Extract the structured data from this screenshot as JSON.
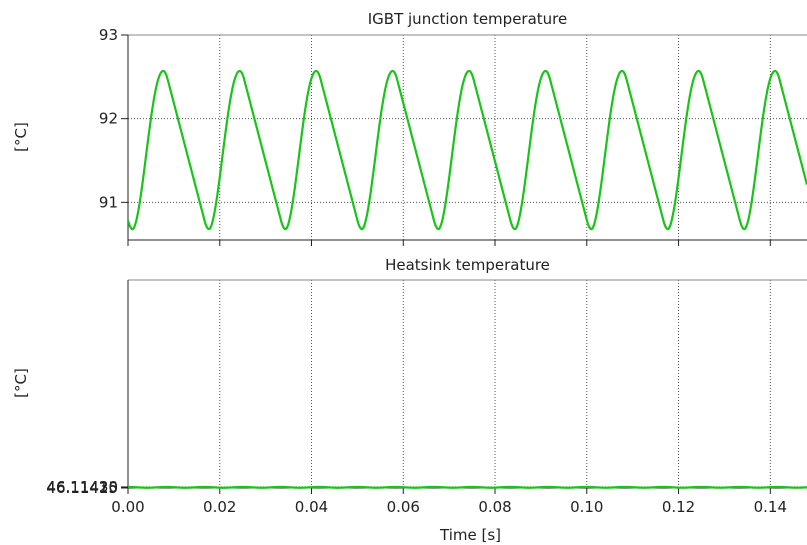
{
  "chart_data": [
    {
      "type": "line",
      "title": "IGBT junction temperature",
      "ylabel": "[°C]",
      "xlabel": "",
      "xlim": [
        0.0,
        0.148
      ],
      "ylim": [
        90.55,
        93.0
      ],
      "yticks": [
        91,
        92,
        93
      ],
      "ytick_labels": [
        "91",
        "92",
        "93"
      ],
      "xticks": [
        0.0,
        0.02,
        0.04,
        0.06,
        0.08,
        0.1,
        0.12,
        0.14
      ],
      "grid": true,
      "series": [
        {
          "color": "#19c419",
          "shape": "triangle-wave",
          "period": 0.01667,
          "min": 90.68,
          "max": 92.57,
          "first_min_x": 0.001,
          "values_sampled": [
            [
              0.0,
              90.85
            ],
            [
              0.001,
              90.68
            ],
            [
              0.008,
              92.57
            ],
            [
              0.0177,
              90.68
            ],
            [
              0.0243,
              92.57
            ],
            [
              0.0343,
              90.68
            ],
            [
              0.041,
              92.57
            ],
            [
              0.051,
              90.68
            ],
            [
              0.0577,
              92.57
            ],
            [
              0.0677,
              90.68
            ],
            [
              0.0743,
              92.57
            ],
            [
              0.0843,
              90.68
            ],
            [
              0.091,
              92.57
            ],
            [
              0.101,
              90.68
            ],
            [
              0.1077,
              92.57
            ],
            [
              0.1177,
              90.68
            ],
            [
              0.1243,
              92.57
            ],
            [
              0.1343,
              90.68
            ],
            [
              0.141,
              92.57
            ],
            [
              0.148,
              91.2
            ]
          ]
        }
      ]
    },
    {
      "type": "line",
      "title": "Heatsink temperature",
      "ylabel": "[°C]",
      "xlabel": "Time [s]",
      "xlim": [
        0.0,
        0.148
      ],
      "ylim": [
        46.11415,
        46.1435
      ],
      "yticks": [
        46.11415,
        46.1142,
        46.11425,
        46.1143
      ],
      "ytick_labels": [
        "46.11415",
        "46.11420",
        "46.11425",
        "46.11430"
      ],
      "xticks": [
        0.0,
        0.02,
        0.04,
        0.06,
        0.08,
        0.1,
        0.12,
        0.14
      ],
      "xtick_labels": [
        "0.00",
        "0.02",
        "0.04",
        "0.06",
        "0.08",
        "0.10",
        "0.12",
        "0.14"
      ],
      "grid": true,
      "series": [
        {
          "color": "#19c419",
          "shape": "sine-wave",
          "period": 0.00833,
          "trough_start": 46.114185,
          "trough_end": 46.11419,
          "peak_start": 46.114295,
          "peak_end": 46.114303,
          "first_peak_x": 0.0
        }
      ]
    }
  ]
}
